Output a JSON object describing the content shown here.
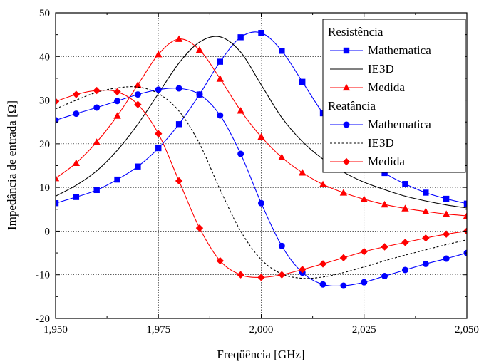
{
  "chart_data": {
    "type": "line",
    "xlabel": "Freqüência [GHz]",
    "ylabel": "Impedância de entrada [Ω]",
    "xlim": [
      1.95,
      2.05
    ],
    "ylim": [
      -20,
      50
    ],
    "x_ticks": [
      1.95,
      1.975,
      2.0,
      2.025,
      2.05
    ],
    "x_tick_labels": [
      "1,950",
      "1,975",
      "2,000",
      "2,025",
      "2,050"
    ],
    "y_ticks": [
      -20,
      -10,
      0,
      10,
      20,
      30,
      40,
      50
    ],
    "y_tick_labels": [
      "-20",
      "-10",
      "0",
      "10",
      "20",
      "30",
      "40",
      "50"
    ],
    "grid": true,
    "legend_position": "top-right",
    "legend_groups": [
      {
        "title": "Resistência",
        "series": [
          "Mathematica",
          "IE3D",
          "Medida"
        ]
      },
      {
        "title": "Reatância",
        "series": [
          "Mathematica",
          "IE3D",
          "Medida"
        ]
      }
    ],
    "series": [
      {
        "group": "Resistência",
        "name": "Mathematica",
        "color": "#0000ff",
        "marker": "square",
        "line": "solid",
        "x": [
          1.95,
          1.955,
          1.96,
          1.965,
          1.97,
          1.975,
          1.98,
          1.985,
          1.99,
          1.995,
          2.0,
          2.005,
          2.01,
          2.015,
          2.02,
          2.025,
          2.03,
          2.035,
          2.04,
          2.045,
          2.05
        ],
        "y": [
          6.4,
          7.8,
          9.4,
          11.8,
          14.8,
          19.0,
          24.5,
          31.3,
          38.8,
          44.4,
          45.4,
          41.3,
          34.2,
          27.0,
          21.2,
          16.8,
          13.3,
          10.8,
          8.8,
          7.4,
          6.3
        ]
      },
      {
        "group": "Resistência",
        "name": "IE3D",
        "color": "#000000",
        "marker": "none",
        "line": "solid",
        "x": [
          1.95,
          1.955,
          1.96,
          1.965,
          1.97,
          1.975,
          1.98,
          1.985,
          1.99,
          1.995,
          2.0,
          2.005,
          2.01,
          2.015,
          2.02,
          2.025,
          2.03,
          2.035,
          2.04,
          2.045,
          2.05
        ],
        "y": [
          8.0,
          10.5,
          13.8,
          18.5,
          24.5,
          31.5,
          38.5,
          43.3,
          44.5,
          41.0,
          33.5,
          26.0,
          20.5,
          16.5,
          13.5,
          11.2,
          9.5,
          8.0,
          6.9,
          6.0,
          5.3
        ]
      },
      {
        "group": "Resistência",
        "name": "Medida",
        "color": "#ff0000",
        "marker": "triangle",
        "line": "solid",
        "x": [
          1.95,
          1.955,
          1.96,
          1.965,
          1.97,
          1.975,
          1.98,
          1.985,
          1.99,
          1.995,
          2.0,
          2.005,
          2.01,
          2.015,
          2.02,
          2.025,
          2.03,
          2.035,
          2.04,
          2.045,
          2.05
        ],
        "y": [
          12.1,
          15.6,
          20.4,
          26.4,
          33.5,
          40.5,
          44.0,
          41.5,
          34.9,
          27.6,
          21.6,
          16.9,
          13.4,
          10.7,
          8.8,
          7.3,
          6.1,
          5.2,
          4.5,
          3.9,
          3.5
        ]
      },
      {
        "group": "Reatância",
        "name": "Mathematica",
        "color": "#0000ff",
        "marker": "circle",
        "line": "solid",
        "x": [
          1.95,
          1.955,
          1.96,
          1.965,
          1.97,
          1.975,
          1.98,
          1.985,
          1.99,
          1.995,
          2.0,
          2.005,
          2.01,
          2.015,
          2.02,
          2.025,
          2.03,
          2.035,
          2.04,
          2.045,
          2.05
        ],
        "y": [
          25.4,
          26.9,
          28.3,
          29.8,
          31.3,
          32.4,
          32.7,
          31.3,
          26.5,
          17.7,
          6.4,
          -3.4,
          -9.5,
          -12.2,
          -12.5,
          -11.7,
          -10.3,
          -8.9,
          -7.5,
          -6.3,
          -5.0
        ]
      },
      {
        "group": "Reatância",
        "name": "IE3D",
        "color": "#000000",
        "marker": "none",
        "line": "dashed",
        "x": [
          1.95,
          1.955,
          1.96,
          1.965,
          1.97,
          1.975,
          1.98,
          1.985,
          1.99,
          1.995,
          2.0,
          2.005,
          2.01,
          2.015,
          2.02,
          2.025,
          2.03,
          2.035,
          2.04,
          2.045,
          2.05
        ],
        "y": [
          28.0,
          30.0,
          31.8,
          32.8,
          33.0,
          31.5,
          27.5,
          20.0,
          9.5,
          0.0,
          -6.5,
          -9.8,
          -10.8,
          -10.5,
          -9.5,
          -8.2,
          -6.8,
          -5.5,
          -4.3,
          -3.1,
          -2.0
        ]
      },
      {
        "group": "Reatância",
        "name": "Medida",
        "color": "#ff0000",
        "marker": "diamond",
        "line": "solid",
        "x": [
          1.95,
          1.955,
          1.96,
          1.965,
          1.97,
          1.975,
          1.98,
          1.985,
          1.99,
          1.995,
          2.0,
          2.005,
          2.01,
          2.015,
          2.02,
          2.025,
          2.03,
          2.035,
          2.04,
          2.045,
          2.05
        ],
        "y": [
          29.7,
          31.3,
          32.2,
          31.9,
          29.0,
          22.3,
          11.5,
          0.7,
          -6.8,
          -10.0,
          -10.6,
          -10.0,
          -8.8,
          -7.5,
          -6.1,
          -4.7,
          -3.6,
          -2.6,
          -1.6,
          -0.7,
          0.0
        ]
      }
    ]
  }
}
